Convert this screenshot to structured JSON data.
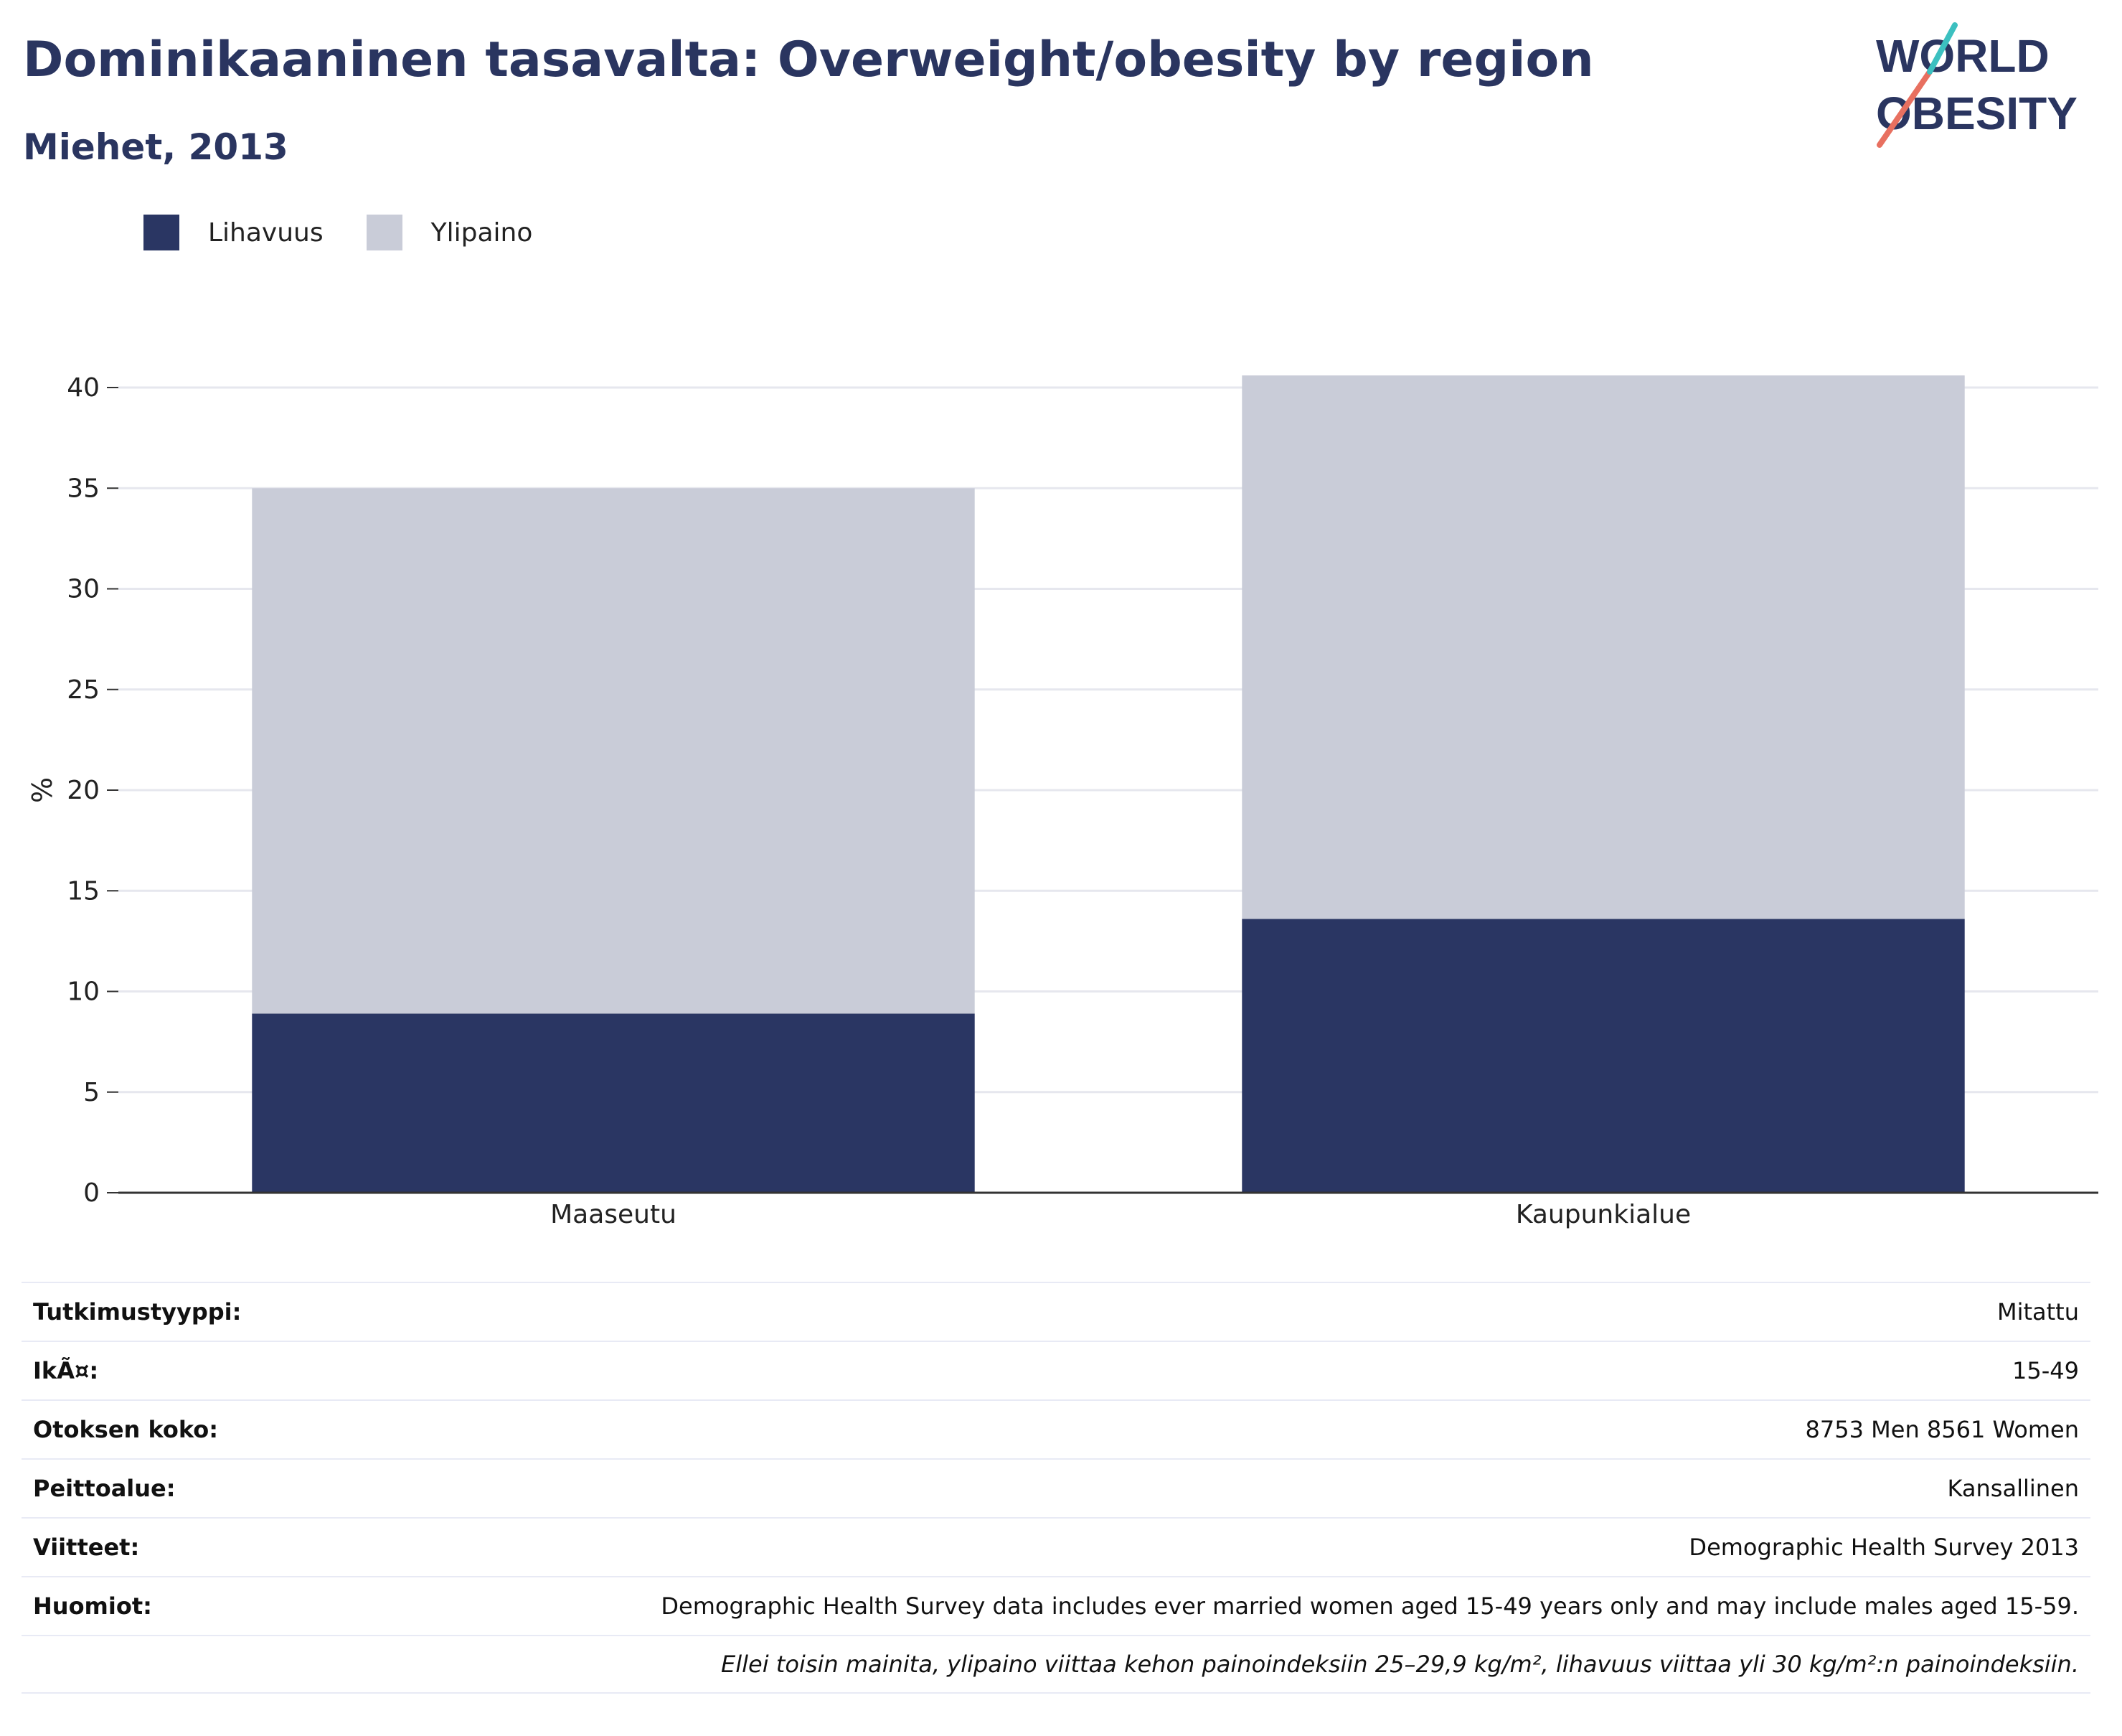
{
  "header": {
    "title": "Dominikaaninen tasavalta: Overweight/obesity by region",
    "subtitle": "Miehet, 2013"
  },
  "logo": {
    "line1": "WORLD",
    "line2": "OBESITY"
  },
  "colors": {
    "obesity": "#2a3663",
    "overweight": "#c9ccd8",
    "grid": "#e6e7ee",
    "axis": "#333333"
  },
  "chart_data": {
    "type": "bar",
    "stacked": true,
    "categories": [
      "Maaseutu",
      "Kaupunkialue"
    ],
    "series": [
      {
        "name": "Lihavuus",
        "values": [
          8.9,
          13.6
        ]
      },
      {
        "name": "Ylipaino",
        "values": [
          26.1,
          27.0
        ]
      }
    ],
    "ylabel": "%",
    "ylim": [
      0,
      40
    ],
    "yticks": [
      0,
      5,
      10,
      15,
      20,
      25,
      30,
      35,
      40
    ],
    "grid": true,
    "legend": "top-left"
  },
  "meta": {
    "rows": [
      {
        "label": "Tutkimustyyppi:",
        "value": "Mitattu"
      },
      {
        "label": "IkÃ¤:",
        "value": "15-49"
      },
      {
        "label": "Otoksen koko:",
        "value": "8753 Men 8561 Women"
      },
      {
        "label": "Peittoalue:",
        "value": "Kansallinen"
      },
      {
        "label": "Viitteet:",
        "value": "Demographic Health Survey 2013"
      },
      {
        "label": "Huomiot:",
        "value": "Demographic Health Survey data includes ever married women aged 15-49 years only and may include males aged 15-59."
      }
    ],
    "note": "Ellei toisin mainita, ylipaino viittaa kehon painoindeksiin 25–29,9 kg/m², lihavuus viittaa yli 30 kg/m²:n painoindeksiin."
  }
}
